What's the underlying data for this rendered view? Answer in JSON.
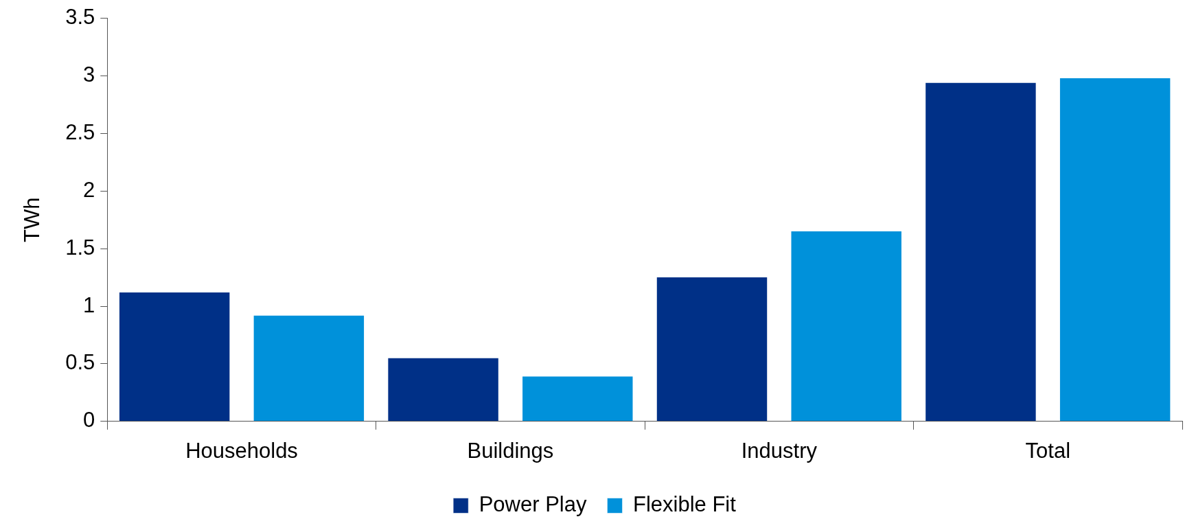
{
  "chart_data": {
    "type": "bar",
    "ylabel": "TWh",
    "categories": [
      "Households",
      "Buildings",
      "Industry",
      "Total"
    ],
    "series": [
      {
        "name": "Power Play",
        "color": "#003087",
        "values": [
          1.12,
          0.55,
          1.25,
          2.94
        ]
      },
      {
        "name": "Flexible Fit",
        "color": "#0091da",
        "values": [
          0.92,
          0.39,
          1.65,
          2.98
        ]
      }
    ],
    "ylim": [
      0,
      3.5
    ],
    "yticks": [
      0,
      0.5,
      1,
      1.5,
      2,
      2.5,
      3,
      3.5
    ],
    "grid": false,
    "legend": "bottom"
  }
}
